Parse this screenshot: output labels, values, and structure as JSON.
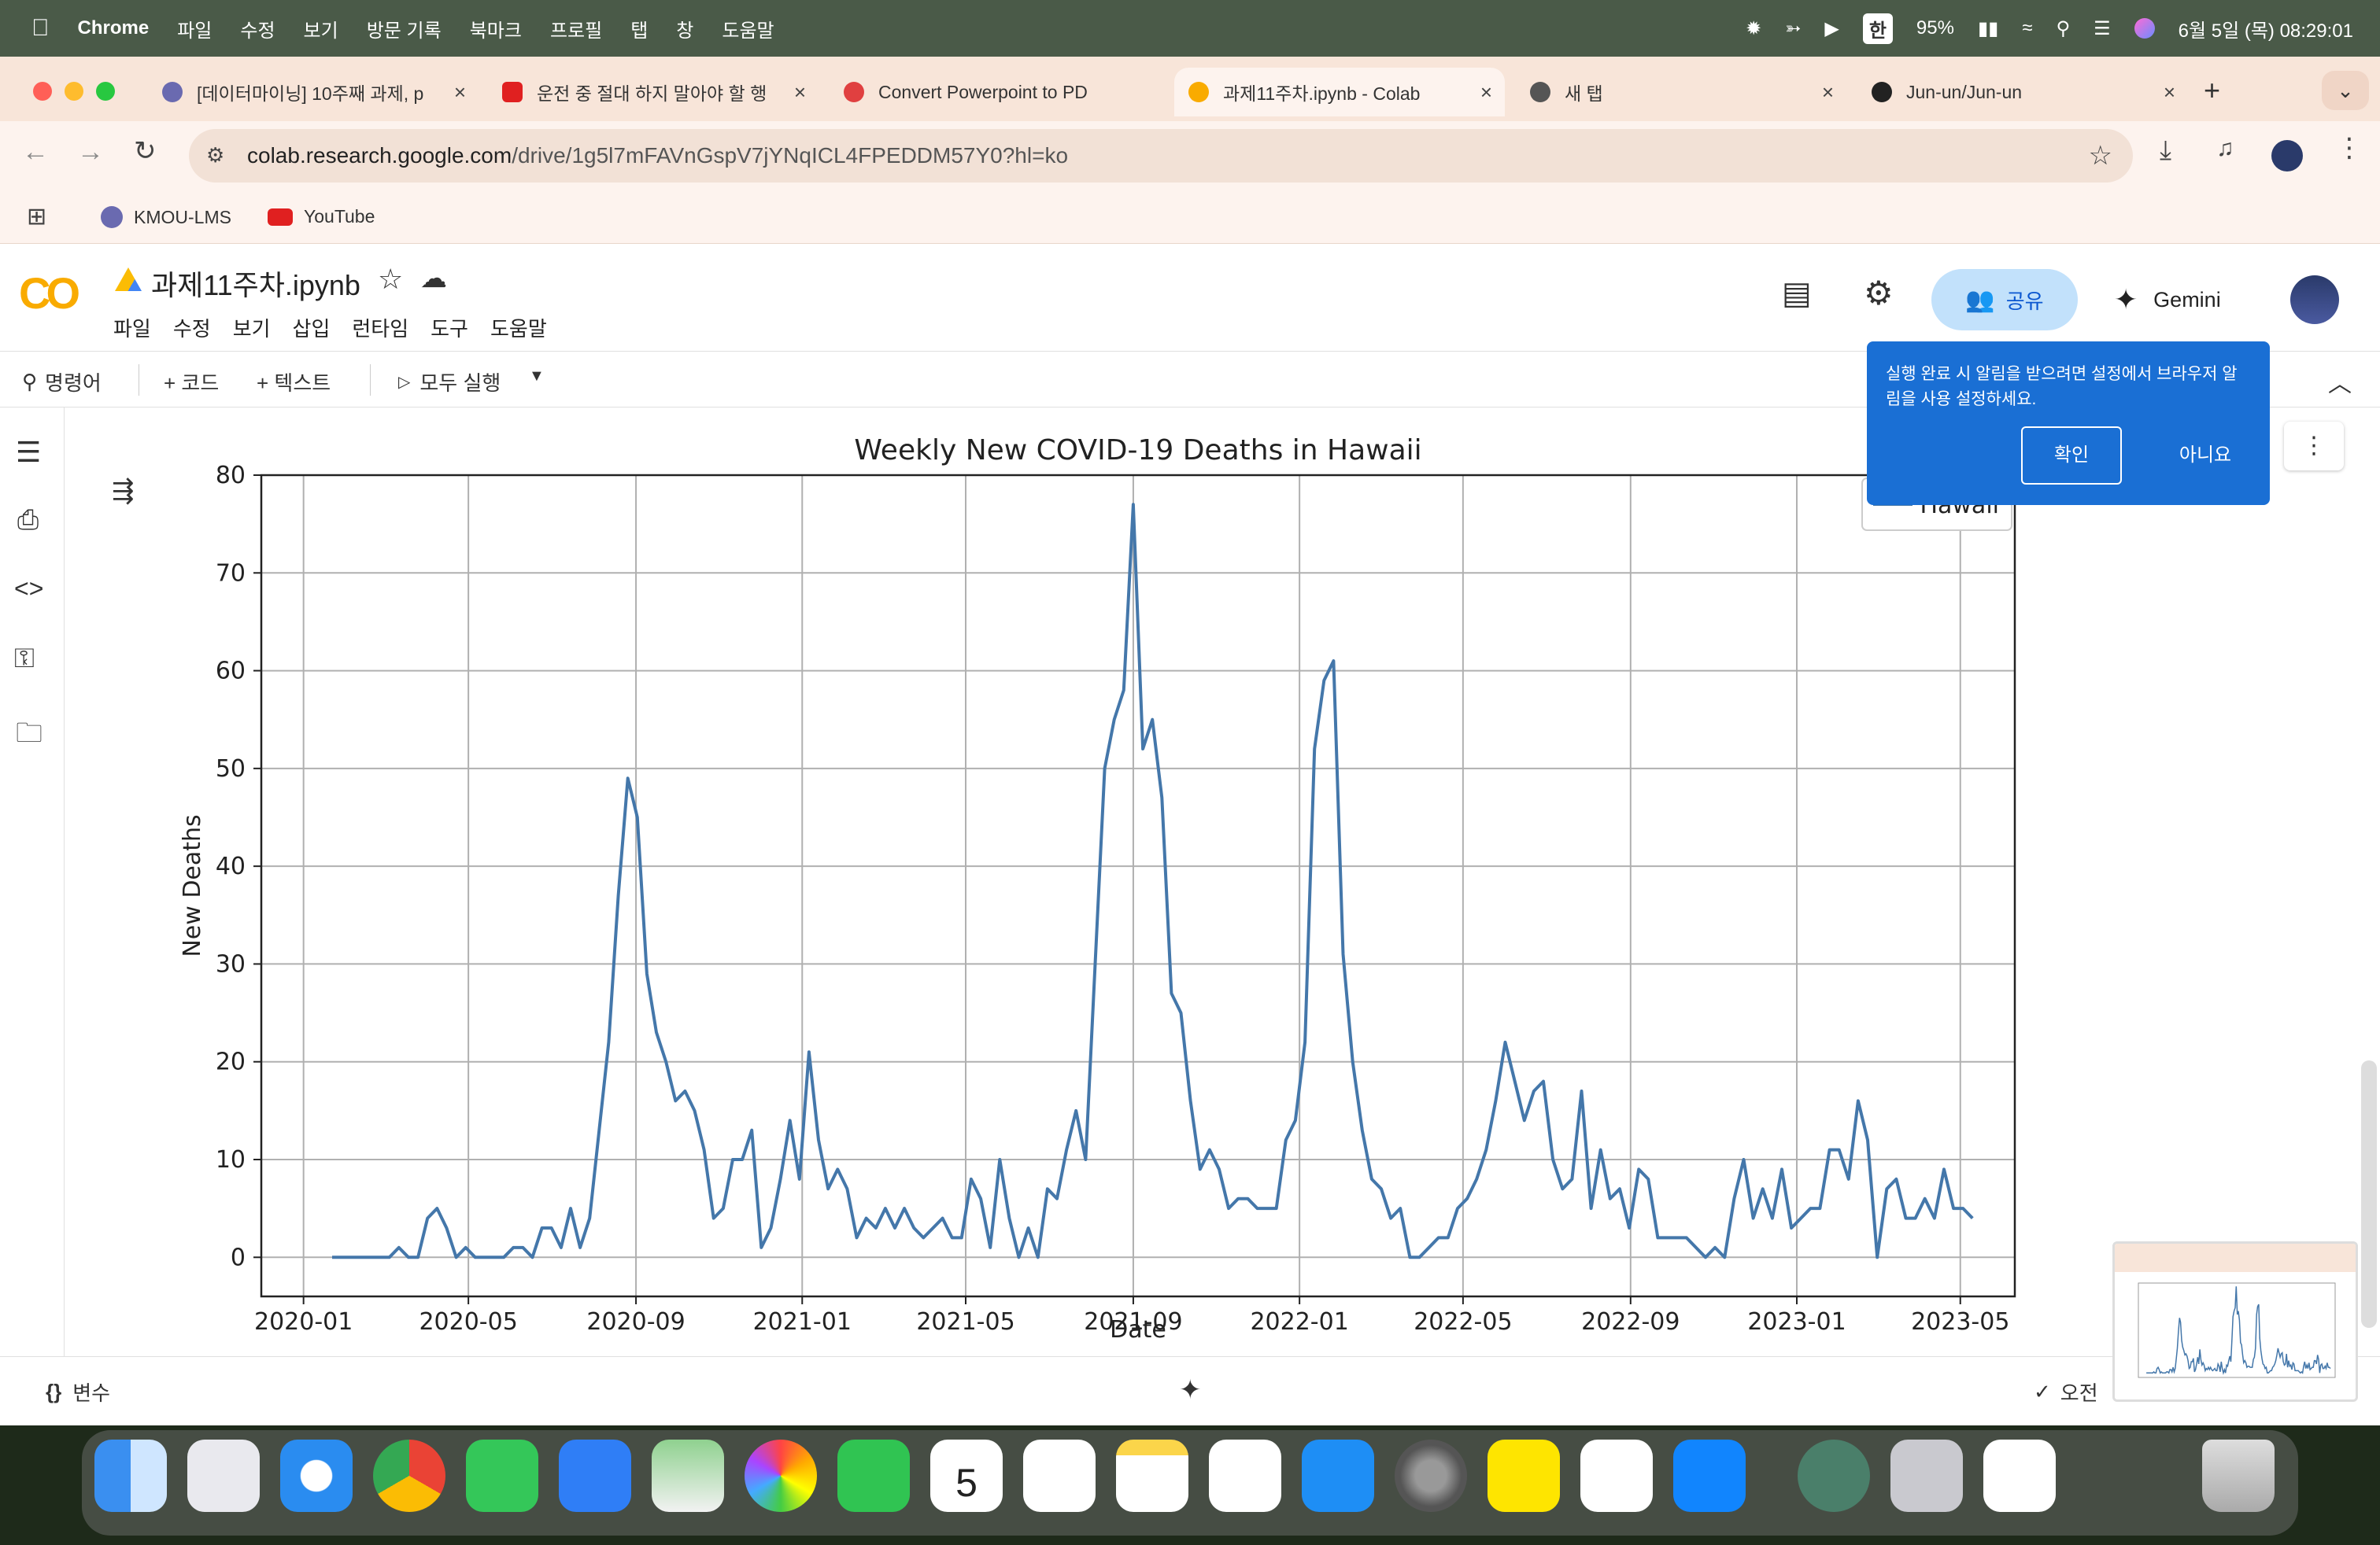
{
  "menubar": {
    "app": "Chrome",
    "items": [
      "파일",
      "수정",
      "보기",
      "방문 기록",
      "북마크",
      "프로필",
      "탭",
      "창",
      "도움말"
    ],
    "input_source": "한",
    "battery": "95%",
    "datetime": "6월 5일 (목) 08:29:01"
  },
  "tabs": [
    {
      "title": "[데이터마이닝] 10주째 과제, p",
      "color": "#6a6ab0"
    },
    {
      "title": "운전 중 절대 하지 말아야 할 행",
      "color": "#e02020"
    },
    {
      "title": "Convert Powerpoint to PD",
      "color": "#e04040"
    },
    {
      "title": "과제11주차.ipynb - Colab",
      "color": "#f9ab00"
    },
    {
      "title": "새 탭",
      "color": "#555555"
    },
    {
      "title": "Jun-un/Jun-un",
      "color": "#222222"
    }
  ],
  "address": {
    "host": "colab.research.google.com",
    "path": "/drive/1g5l7mFAVnGspV7jYNqICL4FPEDDM57Y0?hl=ko"
  },
  "bookmarks": [
    "KMOU-LMS",
    "YouTube"
  ],
  "colab": {
    "logo": "CO",
    "notebook_title": "과제11주차.ipynb",
    "menu": [
      "파일",
      "수정",
      "보기",
      "삽입",
      "런타임",
      "도구",
      "도움말"
    ],
    "share_label": "공유",
    "gemini_label": "Gemini",
    "toolbar": {
      "command": "명령어",
      "add_code": "+ 코드",
      "add_text": "+ 텍스트",
      "run_all": "모두 실행"
    },
    "status": {
      "variables": "변수",
      "done": "오전"
    }
  },
  "popup": {
    "message": "실행 완료 시 알림을 받으려면 설정에서 브라우저 알림을 사용 설정하세요.",
    "confirm": "확인",
    "decline": "아니요"
  },
  "chart_data": {
    "type": "line",
    "title": "Weekly New COVID-19 Deaths in Hawaii",
    "xlabel": "Date",
    "ylabel": "New Deaths",
    "ylim": [
      -4,
      80
    ],
    "xlim": [
      "2019-12-01",
      "2023-06-10"
    ],
    "x_ticks": [
      "2020-01",
      "2020-05",
      "2020-09",
      "2021-01",
      "2021-05",
      "2021-09",
      "2022-01",
      "2022-05",
      "2022-09",
      "2023-01",
      "2023-05"
    ],
    "y_ticks": [
      0,
      10,
      20,
      30,
      40,
      50,
      60,
      70,
      80
    ],
    "grid": true,
    "legend_placement": "top-right",
    "series": [
      {
        "name": "Hawaii",
        "color": "#4477aa",
        "start_date": "2020-01-22",
        "interval_days": 7,
        "values": [
          0,
          0,
          0,
          0,
          0,
          0,
          0,
          1,
          0,
          0,
          4,
          5,
          3,
          0,
          1,
          0,
          0,
          0,
          0,
          1,
          1,
          0,
          3,
          3,
          1,
          5,
          1,
          4,
          13,
          22,
          37,
          49,
          45,
          29,
          23,
          20,
          16,
          17,
          15,
          11,
          4,
          5,
          10,
          10,
          13,
          1,
          3,
          8,
          14,
          8,
          21,
          12,
          7,
          9,
          7,
          2,
          4,
          3,
          5,
          3,
          5,
          3,
          2,
          3,
          4,
          2,
          2,
          8,
          6,
          1,
          10,
          4,
          0,
          3,
          0,
          7,
          6,
          11,
          15,
          10,
          30,
          50,
          55,
          58,
          77,
          52,
          55,
          47,
          27,
          25,
          16,
          9,
          11,
          9,
          5,
          6,
          6,
          5,
          5,
          5,
          12,
          14,
          22,
          52,
          59,
          61,
          31,
          20,
          13,
          8,
          7,
          4,
          5,
          0,
          0,
          1,
          2,
          2,
          5,
          6,
          8,
          11,
          16,
          22,
          18,
          14,
          17,
          18,
          10,
          7,
          8,
          17,
          5,
          11,
          6,
          7,
          3,
          9,
          8,
          2,
          2,
          2,
          2,
          1,
          0,
          1,
          0,
          6,
          10,
          4,
          7,
          4,
          9,
          3,
          4,
          5,
          5,
          11,
          11,
          8,
          16,
          12,
          0,
          7,
          8,
          4,
          4,
          6,
          4,
          9,
          5,
          5,
          4
        ]
      }
    ]
  }
}
